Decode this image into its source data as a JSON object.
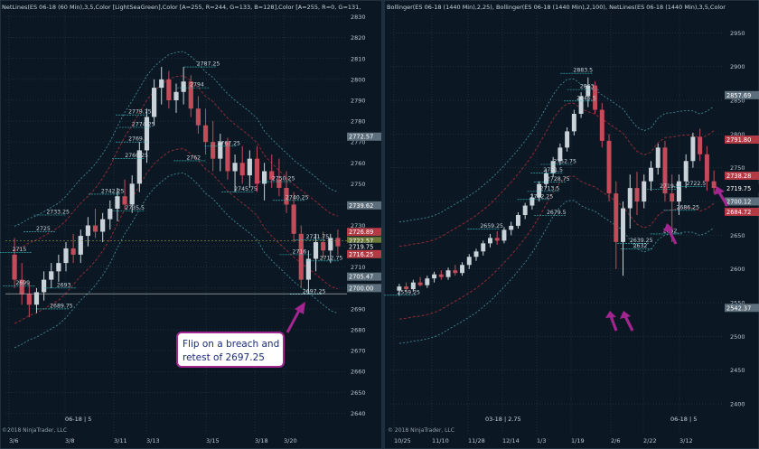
{
  "chart_data": [
    {
      "type": "candlestick",
      "title": "NetLines(ES 06-18 (60 Min),3,5,Color [LightSeaGreen],Color [A=255, R=244, G=133, B=128],Color [A=255, R=0, G=131,",
      "ylim": [
        2638,
        2832
      ],
      "yticks": [
        2640,
        2650,
        2660,
        2670,
        2680,
        2690,
        2700,
        2710,
        2720,
        2730,
        2740,
        2750,
        2760,
        2770,
        2780,
        2790,
        2800,
        2810,
        2820,
        2830
      ],
      "x_tick_labels": [
        "3/6",
        "3/8",
        "3/11",
        "3/13",
        "3/15",
        "3/18",
        "3/20"
      ],
      "price_tags": [
        {
          "value": "2772.57",
          "level": 2772.57,
          "color": "#5d6f7c"
        },
        {
          "value": "2739.62",
          "level": 2739.62,
          "color": "#5d6f7c"
        },
        {
          "value": "2726.89",
          "level": 2726.89,
          "color": "#b23b46"
        },
        {
          "value": "2722.57",
          "level": 2722.57,
          "color": "#6b7a39"
        },
        {
          "value": "2719.75",
          "level": 2719.75,
          "color": "#0b1722"
        },
        {
          "value": "2716.25",
          "level": 2716.25,
          "color": "#b23b46"
        },
        {
          "value": "2705.47",
          "level": 2705.47,
          "color": "#5d6f7c"
        },
        {
          "value": "2700.00",
          "level": 2700.0,
          "color": "#5d6f7c"
        }
      ],
      "level_labels": [
        {
          "text": "2697.25",
          "x_frac": 0.87,
          "level": 2697.0
        },
        {
          "text": "2689.75",
          "x_frac": 0.13,
          "level": 2690.0
        },
        {
          "text": "2699",
          "x_frac": 0.03,
          "level": 2701.0
        },
        {
          "text": "2693",
          "x_frac": 0.15,
          "level": 2700.0
        },
        {
          "text": "2715",
          "x_frac": 0.02,
          "level": 2717.0
        },
        {
          "text": "2725",
          "x_frac": 0.09,
          "level": 2727.0
        },
        {
          "text": "2733.25",
          "x_frac": 0.12,
          "level": 2735.0
        },
        {
          "text": "2735.5",
          "x_frac": 0.35,
          "level": 2737.0
        },
        {
          "text": "2742.25",
          "x_frac": 0.28,
          "level": 2745.0
        },
        {
          "text": "2760.25",
          "x_frac": 0.35,
          "level": 2762.0
        },
        {
          "text": "2769.5",
          "x_frac": 0.36,
          "level": 2770.0
        },
        {
          "text": "2774.25",
          "x_frac": 0.37,
          "level": 2777.0
        },
        {
          "text": "2779.75",
          "x_frac": 0.36,
          "level": 2783.0
        },
        {
          "text": "2787.25",
          "x_frac": 0.56,
          "level": 2806.0
        },
        {
          "text": "2794",
          "x_frac": 0.54,
          "level": 2796.0
        },
        {
          "text": "2767.25",
          "x_frac": 0.62,
          "level": 2768.0
        },
        {
          "text": "2762",
          "x_frac": 0.53,
          "level": 2761.0
        },
        {
          "text": "2745.75",
          "x_frac": 0.67,
          "level": 2746.0
        },
        {
          "text": "2750.25",
          "x_frac": 0.78,
          "level": 2751.0
        },
        {
          "text": "2740.25",
          "x_frac": 0.82,
          "level": 2742.0
        },
        {
          "text": "2721.75",
          "x_frac": 0.88,
          "level": 2723.0
        },
        {
          "text": "2716",
          "x_frac": 0.84,
          "level": 2716.0
        },
        {
          "text": "2712.75",
          "x_frac": 0.92,
          "level": 2713.0
        }
      ],
      "candles": [
        [
          2716,
          2724,
          2700,
          2704
        ],
        [
          2704,
          2712,
          2692,
          2697
        ],
        [
          2697,
          2702,
          2686,
          2692
        ],
        [
          2692,
          2700,
          2688,
          2698
        ],
        [
          2698,
          2708,
          2694,
          2704
        ],
        [
          2704,
          2712,
          2700,
          2708
        ],
        [
          2708,
          2716,
          2703,
          2712
        ],
        [
          2712,
          2722,
          2708,
          2719
        ],
        [
          2719,
          2726,
          2712,
          2716
        ],
        [
          2716,
          2728,
          2712,
          2725
        ],
        [
          2725,
          2734,
          2720,
          2730
        ],
        [
          2730,
          2738,
          2724,
          2727
        ],
        [
          2727,
          2736,
          2722,
          2733
        ],
        [
          2733,
          2742,
          2728,
          2738
        ],
        [
          2738,
          2748,
          2732,
          2744
        ],
        [
          2744,
          2752,
          2738,
          2740
        ],
        [
          2740,
          2754,
          2736,
          2750
        ],
        [
          2750,
          2770,
          2746,
          2766
        ],
        [
          2766,
          2786,
          2760,
          2782
        ],
        [
          2782,
          2800,
          2778,
          2796
        ],
        [
          2796,
          2806,
          2788,
          2800
        ],
        [
          2800,
          2804,
          2786,
          2790
        ],
        [
          2790,
          2798,
          2784,
          2794
        ],
        [
          2794,
          2806,
          2788,
          2799
        ],
        [
          2799,
          2802,
          2782,
          2786
        ],
        [
          2786,
          2792,
          2774,
          2778
        ],
        [
          2778,
          2786,
          2764,
          2770
        ],
        [
          2770,
          2780,
          2756,
          2762
        ],
        [
          2762,
          2774,
          2756,
          2770
        ],
        [
          2770,
          2772,
          2752,
          2756
        ],
        [
          2756,
          2764,
          2746,
          2760
        ],
        [
          2760,
          2768,
          2750,
          2754
        ],
        [
          2754,
          2766,
          2748,
          2762
        ],
        [
          2762,
          2768,
          2746,
          2750
        ],
        [
          2750,
          2760,
          2742,
          2756
        ],
        [
          2756,
          2764,
          2748,
          2752
        ],
        [
          2752,
          2762,
          2744,
          2748
        ],
        [
          2748,
          2756,
          2736,
          2740
        ],
        [
          2740,
          2746,
          2722,
          2726
        ],
        [
          2726,
          2730,
          2700,
          2704
        ],
        [
          2704,
          2718,
          2697,
          2714
        ],
        [
          2714,
          2726,
          2708,
          2722
        ],
        [
          2722,
          2727,
          2714,
          2718
        ],
        [
          2718,
          2726,
          2712,
          2724
        ],
        [
          2724,
          2728,
          2716,
          2720
        ]
      ]
    },
    {
      "type": "candlestick",
      "title": "Bollinger(ES 06-18 (1440 Min),2,25), Bollinger(ES 06-18 (1440 Min),2,100), NetLines(ES 06-18 (1440 Min),3,5,Color",
      "ylim": [
        2380,
        2980
      ],
      "yticks": [
        2400,
        2450,
        2500,
        2550,
        2600,
        2650,
        2700,
        2750,
        2800,
        2850,
        2900,
        2950
      ],
      "x_tick_labels": [
        "10/25",
        "11/10",
        "11/28",
        "12/14",
        "1/3",
        "1/19",
        "2/6",
        "2/22",
        "3/12"
      ],
      "price_tags": [
        {
          "value": "2857.69",
          "level": 2857.69,
          "color": "#5d6f7c"
        },
        {
          "value": "2791.80",
          "level": 2791.8,
          "color": "#b23b46"
        },
        {
          "value": "2738.28",
          "level": 2738.28,
          "color": "#b23b46"
        },
        {
          "value": "2719.75",
          "level": 2719.75,
          "color": "#0b1722"
        },
        {
          "value": "2700.12",
          "level": 2700.12,
          "color": "#5d6f7c"
        },
        {
          "value": "2684.72",
          "level": 2684.72,
          "color": "#b23b46"
        },
        {
          "value": "2542.37",
          "level": 2542.37,
          "color": "#5d6f7c"
        }
      ],
      "level_labels": [
        {
          "text": "2883.5",
          "x_frac": 0.55,
          "level": 2890.0
        },
        {
          "text": "2863",
          "x_frac": 0.57,
          "level": 2866.0
        },
        {
          "text": "2845.5",
          "x_frac": 0.56,
          "level": 2849.0
        },
        {
          "text": "2752.75",
          "x_frac": 0.49,
          "level": 2755.0
        },
        {
          "text": "2741.5",
          "x_frac": 0.46,
          "level": 2742.0
        },
        {
          "text": "2728.75",
          "x_frac": 0.47,
          "level": 2729.0
        },
        {
          "text": "2713.5",
          "x_frac": 0.45,
          "level": 2715.0
        },
        {
          "text": "2702.25",
          "x_frac": 0.42,
          "level": 2703.0
        },
        {
          "text": "2679.5",
          "x_frac": 0.47,
          "level": 2679.0
        },
        {
          "text": "2659.25",
          "x_frac": 0.27,
          "level": 2659.0
        },
        {
          "text": "2639.25",
          "x_frac": 0.72,
          "level": 2638.0
        },
        {
          "text": "2632",
          "x_frac": 0.73,
          "level": 2630.0
        },
        {
          "text": "2652",
          "x_frac": 0.82,
          "level": 2652.0
        },
        {
          "text": "2686.25",
          "x_frac": 0.86,
          "level": 2687.0
        },
        {
          "text": "2722.5",
          "x_frac": 0.89,
          "level": 2722.0
        },
        {
          "text": "2719.5",
          "x_frac": 0.81,
          "level": 2718.0
        },
        {
          "text": "2559.25",
          "x_frac": 0.02,
          "level": 2561.0
        }
      ],
      "candles": [
        [
          2568,
          2578,
          2560,
          2574
        ],
        [
          2574,
          2580,
          2566,
          2570
        ],
        [
          2570,
          2584,
          2566,
          2580
        ],
        [
          2580,
          2588,
          2574,
          2576
        ],
        [
          2576,
          2590,
          2572,
          2586
        ],
        [
          2586,
          2596,
          2580,
          2592
        ],
        [
          2592,
          2598,
          2584,
          2588
        ],
        [
          2588,
          2602,
          2584,
          2598
        ],
        [
          2598,
          2606,
          2590,
          2594
        ],
        [
          2594,
          2610,
          2590,
          2606
        ],
        [
          2606,
          2622,
          2600,
          2618
        ],
        [
          2618,
          2630,
          2612,
          2626
        ],
        [
          2626,
          2642,
          2620,
          2638
        ],
        [
          2638,
          2652,
          2632,
          2646
        ],
        [
          2646,
          2656,
          2636,
          2642
        ],
        [
          2642,
          2662,
          2638,
          2658
        ],
        [
          2658,
          2670,
          2650,
          2664
        ],
        [
          2664,
          2684,
          2660,
          2680
        ],
        [
          2680,
          2698,
          2674,
          2694
        ],
        [
          2694,
          2712,
          2688,
          2706
        ],
        [
          2706,
          2730,
          2700,
          2726
        ],
        [
          2726,
          2748,
          2720,
          2742
        ],
        [
          2742,
          2766,
          2736,
          2760
        ],
        [
          2760,
          2786,
          2754,
          2780
        ],
        [
          2780,
          2810,
          2774,
          2804
        ],
        [
          2804,
          2836,
          2798,
          2830
        ],
        [
          2830,
          2862,
          2824,
          2856
        ],
        [
          2856,
          2884,
          2840,
          2872
        ],
        [
          2872,
          2878,
          2830,
          2836
        ],
        [
          2836,
          2846,
          2780,
          2790
        ],
        [
          2790,
          2800,
          2700,
          2712
        ],
        [
          2712,
          2730,
          2600,
          2640
        ],
        [
          2640,
          2700,
          2590,
          2690
        ],
        [
          2690,
          2740,
          2660,
          2720
        ],
        [
          2720,
          2744,
          2680,
          2700
        ],
        [
          2700,
          2740,
          2690,
          2730
        ],
        [
          2730,
          2760,
          2716,
          2750
        ],
        [
          2750,
          2786,
          2740,
          2780
        ],
        [
          2780,
          2790,
          2700,
          2712
        ],
        [
          2712,
          2740,
          2640,
          2700
        ],
        [
          2700,
          2740,
          2680,
          2730
        ],
        [
          2730,
          2770,
          2720,
          2760
        ],
        [
          2760,
          2802,
          2750,
          2796
        ],
        [
          2796,
          2808,
          2760,
          2770
        ],
        [
          2770,
          2782,
          2716,
          2730
        ],
        [
          2730,
          2746,
          2712,
          2720
        ]
      ]
    }
  ],
  "watermarks": [
    {
      "text": "©2018 NinjaTrader, LLC"
    },
    {
      "text": "© 2018 NinjaTrader, LLC"
    }
  ],
  "period_labels": [
    {
      "text": "06-18 | 5"
    },
    {
      "text": "03-18 | 2.75"
    },
    {
      "text": "06-18 | 5"
    }
  ],
  "annotation": {
    "line1": "Flip on a breach and",
    "line2": "retest of 2697.25"
  },
  "colors": {
    "background": "#0b1722",
    "candle_up": "#c8d2d8",
    "candle_down": "#c44b5a",
    "grid": "#2d4656",
    "cyan_level": "#3fc9cf",
    "arrow": "#a2268f",
    "upper_band": "#8c2a34",
    "mid_band": "#3d8a93"
  }
}
